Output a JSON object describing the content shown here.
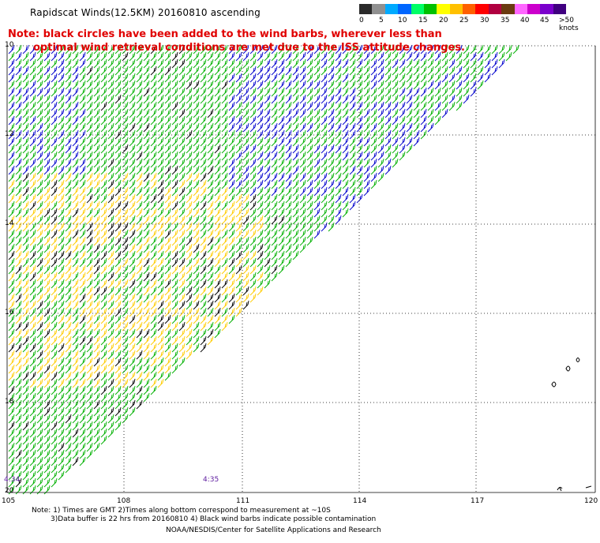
{
  "title": "Rapidscat Winds(12.5KM) 20160810 ascending",
  "note_line1": "Note: black circles have been added to the wind barbs, wherever less than",
  "note_line2": "optimal wind retrieval conditions are met due to the ISS attitude changes.",
  "legend": {
    "colors": [
      "#2a2a2a",
      "#909090",
      "#00aaff",
      "#0066ff",
      "#00ff66",
      "#00c000",
      "#ffff00",
      "#ffc000",
      "#ff6000",
      "#ff0000",
      "#b00040",
      "#6a3a10",
      "#ff66ff",
      "#cc00cc",
      "#7a00cc",
      "#400080"
    ],
    "labels": [
      "0",
      "5",
      "10",
      "15",
      "20",
      "25",
      "30",
      "35",
      "40",
      "45",
      ">50 knots"
    ]
  },
  "axes": {
    "lat_labels": [
      "10",
      "12",
      "14",
      "16",
      "18",
      "20"
    ],
    "lon_labels": [
      "105",
      "108",
      "111",
      "114",
      "117",
      "120"
    ]
  },
  "time_labels": [
    "4:34",
    "4:35"
  ],
  "footer": {
    "line1": "Note: 1) Times are GMT 2)Times along bottom correspond to measurement at ~10S",
    "line2": "3)Data buffer is 22 hrs from 20160810 4) Black wind barbs indicate possible contamination",
    "line3": "NOAA/NESDIS/Center for Satellite Applications and Research"
  }
}
